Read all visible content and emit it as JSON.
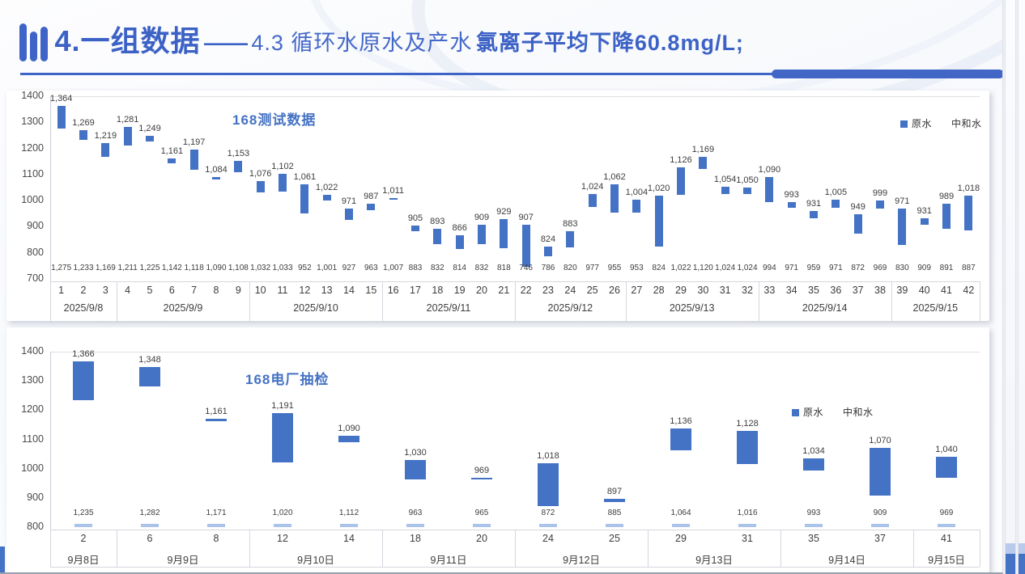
{
  "header": {
    "title_main": "4.一组数据",
    "title_dash": "——",
    "title_sub": "4.3 循环水原水及产水",
    "title_bold": "氯离子平均下降60.8mg/L;"
  },
  "colors": {
    "bar": "#4472c4",
    "accent_title": "#3c62c6",
    "neutral_dash": "#a9c3e9"
  },
  "chart_data": [
    {
      "type": "bar",
      "variant": "floating-range",
      "title": "168测试数据",
      "legend": [
        "原水",
        "中和水"
      ],
      "ylim": [
        700,
        1400
      ],
      "ystep": 100,
      "grid": "top-line-only",
      "legend_position": "top-right",
      "groups": [
        {
          "label": "2025/9/8",
          "ticks": [
            1,
            2,
            3
          ]
        },
        {
          "label": "2025/9/9",
          "ticks": [
            4,
            5,
            6,
            7,
            8,
            9
          ]
        },
        {
          "label": "2025/9/10",
          "ticks": [
            10,
            11,
            12,
            13,
            14,
            15
          ]
        },
        {
          "label": "2025/9/11",
          "ticks": [
            16,
            17,
            18,
            19,
            20,
            21
          ]
        },
        {
          "label": "2025/9/12",
          "ticks": [
            22,
            23,
            24,
            25,
            26
          ]
        },
        {
          "label": "2025/9/13",
          "ticks": [
            27,
            28,
            29,
            30,
            31,
            32
          ]
        },
        {
          "label": "2025/9/14",
          "ticks": [
            33,
            34,
            35,
            36,
            37,
            38
          ]
        },
        {
          "label": "2025/9/15",
          "ticks": [
            39,
            40,
            41,
            42
          ]
        }
      ],
      "series": [
        {
          "name": "原水",
          "values": [
            1364,
            1269,
            1219,
            1281,
            1249,
            1161,
            1197,
            1084,
            1153,
            1076,
            1102,
            1061,
            1022,
            971,
            987,
            1011,
            905,
            893,
            866,
            909,
            929,
            907,
            824,
            883,
            1024,
            1062,
            1004,
            1020,
            1126,
            1169,
            1054,
            1050,
            1090,
            993,
            931,
            1005,
            949,
            999,
            971,
            931,
            989,
            1018
          ]
        },
        {
          "name": "中和水",
          "values": [
            1275,
            1233,
            1169,
            1211,
            1225,
            1142,
            1118,
            1090,
            1108,
            1032,
            1033,
            952,
            1001,
            927,
            963,
            1007,
            883,
            832,
            814,
            832,
            818,
            746,
            786,
            820,
            977,
            955,
            953,
            824,
            1022,
            1120,
            1024,
            1024,
            994,
            971,
            959,
            971,
            872,
            969,
            830,
            909,
            891,
            887
          ]
        }
      ]
    },
    {
      "type": "bar",
      "variant": "floating-range",
      "title": "168电厂抽检",
      "legend": [
        "原水",
        "中和水"
      ],
      "ylim": [
        800,
        1400
      ],
      "ystep": 100,
      "grid": "top-line-only",
      "legend_position": "right",
      "groups": [
        {
          "label": "9月8日",
          "ticks": [
            2
          ]
        },
        {
          "label": "9月9日",
          "ticks": [
            6,
            8
          ]
        },
        {
          "label": "9月10日",
          "ticks": [
            12,
            14
          ]
        },
        {
          "label": "9月11日",
          "ticks": [
            18,
            20
          ]
        },
        {
          "label": "9月12日",
          "ticks": [
            24,
            25
          ]
        },
        {
          "label": "9月13日",
          "ticks": [
            29,
            31
          ]
        },
        {
          "label": "9月14日",
          "ticks": [
            35,
            37
          ]
        },
        {
          "label": "9月15日",
          "ticks": [
            41
          ]
        }
      ],
      "series": [
        {
          "name": "原水",
          "values": [
            1366,
            1348,
            1161,
            1191,
            1090,
            1030,
            969,
            1018,
            897,
            1136,
            1128,
            1034,
            1070,
            1040
          ]
        },
        {
          "name": "中和水",
          "values": [
            1235,
            1282,
            1171,
            1020,
            1112,
            963,
            965,
            872,
            885,
            1064,
            1016,
            993,
            909,
            969
          ]
        }
      ]
    }
  ]
}
